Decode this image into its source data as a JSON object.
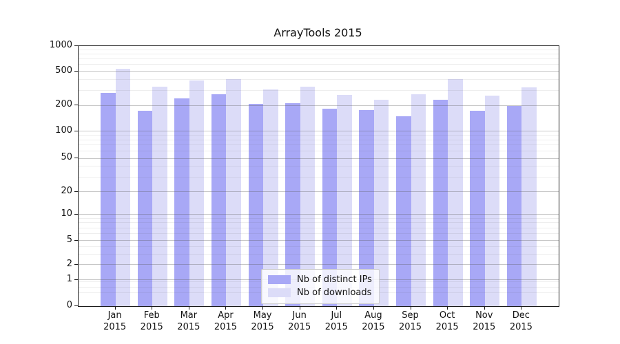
{
  "chart_data": {
    "type": "bar",
    "title": "ArrayTools 2015",
    "categories": [
      "Jan 2015",
      "Feb 2015",
      "Mar 2015",
      "Apr 2015",
      "May 2015",
      "Jun 2015",
      "Jul 2015",
      "Aug 2015",
      "Sep 2015",
      "Oct 2015",
      "Nov 2015",
      "Dec 2015"
    ],
    "x_tick_lines": [
      [
        "Jan",
        "2015"
      ],
      [
        "Feb",
        "2015"
      ],
      [
        "Mar",
        "2015"
      ],
      [
        "Apr",
        "2015"
      ],
      [
        "May",
        "2015"
      ],
      [
        "Jun",
        "2015"
      ],
      [
        "Jul",
        "2015"
      ],
      [
        "Aug",
        "2015"
      ],
      [
        "Sep",
        "2015"
      ],
      [
        "Oct",
        "2015"
      ],
      [
        "Nov",
        "2015"
      ],
      [
        "Dec",
        "2015"
      ]
    ],
    "series": [
      {
        "name": "Nb of distinct IPs",
        "color": "#a8a8f6",
        "values": [
          280,
          175,
          242,
          272,
          208,
          213,
          184,
          177,
          151,
          233,
          173,
          198
        ]
      },
      {
        "name": "Nb of downloads",
        "color": "#dcdcf8",
        "values": [
          540,
          330,
          392,
          408,
          310,
          333,
          266,
          233,
          270,
          408,
          262,
          325
        ]
      }
    ],
    "yscale": "symlog",
    "ylim": [
      0,
      1000
    ],
    "yticks": [
      0,
      1,
      2,
      5,
      10,
      20,
      50,
      100,
      200,
      500,
      1000
    ],
    "ytick_labels": [
      "0",
      "1",
      "2",
      "5",
      "10",
      "20",
      "50",
      "100",
      "200",
      "500",
      "1000"
    ],
    "minor_gridlines": [
      0.5,
      0.7,
      0.9,
      3,
      4,
      6,
      7,
      8,
      9,
      30,
      40,
      60,
      70,
      80,
      90,
      300,
      400,
      600,
      700,
      800,
      900
    ],
    "grid": "on",
    "legend_position": "lower center"
  },
  "colors": {
    "bar_distinct_ips": "#a8a8f6",
    "bar_downloads": "#dcdcf8",
    "grid_major": "#c7c7c7",
    "grid_minor": "#e9e9e9",
    "axis": "#1a1a1a",
    "background": "#ffffff",
    "legend_border": "#cccccc"
  }
}
